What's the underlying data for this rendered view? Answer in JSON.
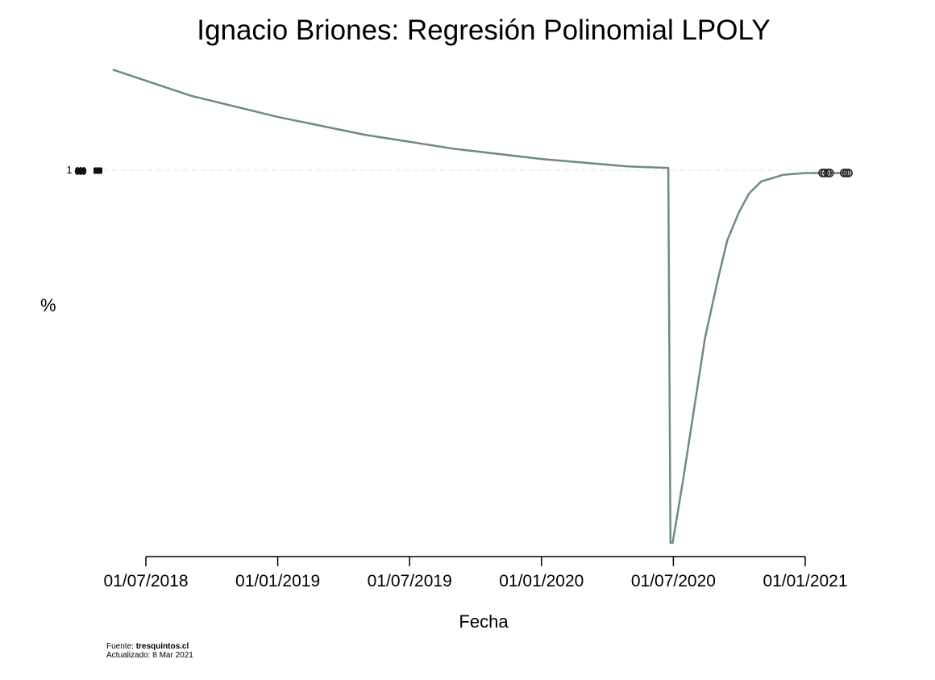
{
  "chart_data": {
    "type": "line",
    "title": "Ignacio Briones: Regresión Polinomial LPOLY",
    "xlabel": "Fecha",
    "ylabel": "%",
    "x_ticks": [
      "01/07/2018",
      "01/01/2019",
      "01/07/2019",
      "01/01/2020",
      "01/07/2020",
      "01/01/2021"
    ],
    "y_ticks": [
      "1"
    ],
    "grid": false,
    "series": [
      {
        "color": "#6e8b80",
        "points": [
          {
            "x": "2018-05-16",
            "y": 1.108
          },
          {
            "x": "2018-09-01",
            "y": 1.08
          },
          {
            "x": "2019-01-01",
            "y": 1.057
          },
          {
            "x": "2019-05-01",
            "y": 1.038
          },
          {
            "x": "2019-09-01",
            "y": 1.023
          },
          {
            "x": "2020-01-01",
            "y": 1.012
          },
          {
            "x": "2020-05-01",
            "y": 1.004
          },
          {
            "x": "2020-06-25",
            "y": 1.0025
          },
          {
            "x": "2020-06-28",
            "y": 0.6
          },
          {
            "x": "2020-07-01",
            "y": 0.6
          },
          {
            "x": "2020-07-15",
            "y": 0.665
          },
          {
            "x": "2020-08-01",
            "y": 0.75
          },
          {
            "x": "2020-08-15",
            "y": 0.82
          },
          {
            "x": "2020-09-01",
            "y": 0.88
          },
          {
            "x": "2020-09-15",
            "y": 0.925
          },
          {
            "x": "2020-10-01",
            "y": 0.955
          },
          {
            "x": "2020-10-15",
            "y": 0.975
          },
          {
            "x": "2020-11-01",
            "y": 0.988
          },
          {
            "x": "2020-12-01",
            "y": 0.995
          },
          {
            "x": "2021-01-01",
            "y": 0.997
          },
          {
            "x": "2021-02-01",
            "y": 0.997
          },
          {
            "x": "2021-03-01",
            "y": 0.997
          }
        ]
      }
    ],
    "markers": [
      {
        "x": "2021-01-25",
        "y": 0.997
      },
      {
        "x": "2021-01-28",
        "y": 0.997
      },
      {
        "x": "2021-02-01",
        "y": 0.997
      },
      {
        "x": "2021-02-04",
        "y": 0.997
      },
      {
        "x": "2021-02-24",
        "y": 0.997
      },
      {
        "x": "2021-02-27",
        "y": 0.997
      },
      {
        "x": "2021-03-02",
        "y": 0.997
      }
    ],
    "reference_line": {
      "y": 1,
      "style": "dashed",
      "color": "#e5e5e5"
    }
  },
  "footer": {
    "source_prefix": "Fuente: ",
    "source_name": "tresquintos.cl",
    "updated": "Actualizado: 8 Mar 2021"
  }
}
